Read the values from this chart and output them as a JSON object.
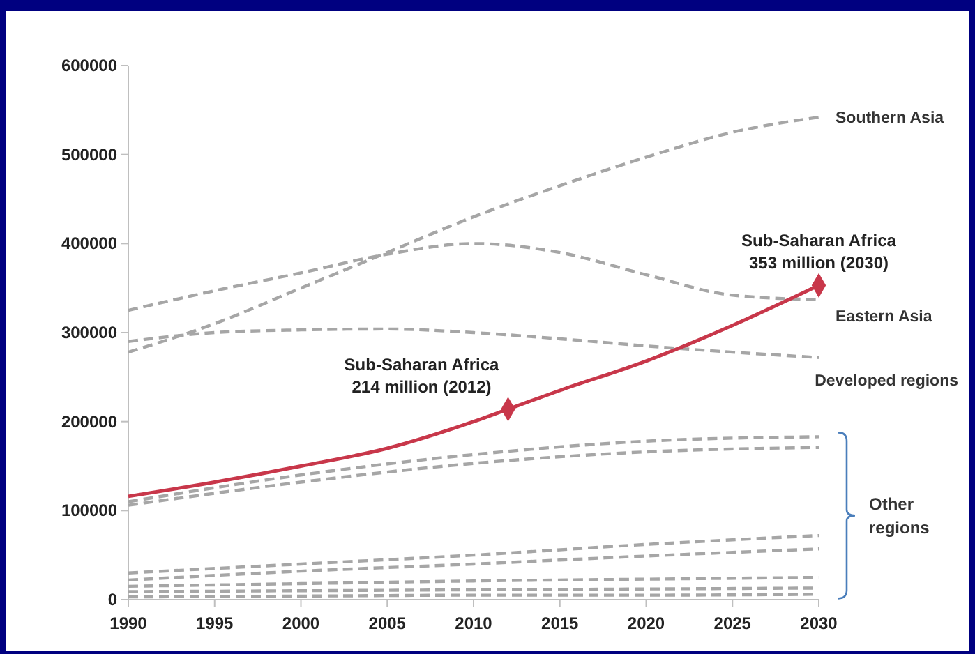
{
  "chart_data": {
    "type": "line",
    "x": [
      1990,
      1995,
      2000,
      2005,
      2010,
      2015,
      2020,
      2025,
      2030
    ],
    "xlim": [
      1990,
      2030
    ],
    "xticks": [
      1990,
      1995,
      2000,
      2005,
      2010,
      2015,
      2020,
      2025,
      2030
    ],
    "ylim": [
      0,
      600000
    ],
    "yticks": [
      0,
      100000,
      200000,
      300000,
      400000,
      500000,
      600000
    ],
    "grid": false,
    "series": [
      {
        "name": "Southern Asia",
        "color": "#a6a6a6",
        "line_style": "dashed",
        "values": [
          278000,
          310000,
          350000,
          390000,
          430000,
          465000,
          497000,
          525000,
          542000
        ]
      },
      {
        "name": "Eastern Asia",
        "color": "#a6a6a6",
        "line_style": "dashed",
        "values": [
          325000,
          347000,
          367000,
          388000,
          400000,
          390000,
          365000,
          342000,
          337000
        ]
      },
      {
        "name": "Developed regions",
        "color": "#a6a6a6",
        "line_style": "dashed",
        "values": [
          290000,
          300000,
          303000,
          304000,
          300000,
          293000,
          285000,
          278000,
          272000
        ]
      },
      {
        "color": "#a6a6a6",
        "line_style": "dashed",
        "x": [
          1990,
          2000,
          2010,
          2020,
          2030
        ],
        "values": [
          110000,
          140000,
          163000,
          178000,
          183000
        ]
      },
      {
        "color": "#a6a6a6",
        "line_style": "dashed",
        "x": [
          1990,
          2000,
          2010,
          2020,
          2030
        ],
        "values": [
          106000,
          132000,
          153000,
          166000,
          171000
        ]
      },
      {
        "color": "#a6a6a6",
        "line_style": "dashed",
        "x": [
          1990,
          2000,
          2010,
          2020,
          2030
        ],
        "values": [
          30000,
          40000,
          50000,
          62000,
          72000
        ]
      },
      {
        "color": "#a6a6a6",
        "line_style": "dashed",
        "x": [
          1990,
          2000,
          2010,
          2020,
          2030
        ],
        "values": [
          22000,
          32000,
          40000,
          49000,
          57000
        ]
      },
      {
        "color": "#a6a6a6",
        "line_style": "dashed",
        "x": [
          1990,
          2000,
          2010,
          2020,
          2030
        ],
        "values": [
          15000,
          18000,
          21000,
          23000,
          25000
        ]
      },
      {
        "color": "#a6a6a6",
        "line_style": "dashed",
        "x": [
          1990,
          2000,
          2010,
          2020,
          2030
        ],
        "values": [
          9000,
          10000,
          11000,
          12000,
          13000
        ]
      },
      {
        "color": "#a6a6a6",
        "line_style": "dashed",
        "x": [
          1990,
          2000,
          2010,
          2020,
          2030
        ],
        "values": [
          3000,
          4000,
          5000,
          5000,
          6000
        ]
      },
      {
        "color": "#c8374a",
        "line_style": "solid",
        "x": [
          1990,
          1995,
          2000,
          2005,
          2010,
          2012,
          2015,
          2020,
          2025,
          2030
        ],
        "values": [
          116000,
          132000,
          150000,
          170000,
          200000,
          214000,
          235000,
          268000,
          308000,
          353000
        ]
      },
      {
        "type": "scatter",
        "marker": "diamond",
        "color": "#c8374a",
        "x": [
          2012,
          2030
        ],
        "values": [
          214000,
          353000
        ]
      }
    ],
    "annotations": [
      {
        "text": "Sub-Saharan Africa\n214 million (2012)",
        "x": 2012,
        "y": 214000
      },
      {
        "text": "Sub-Saharan Africa\n353 million (2030)",
        "x": 2030,
        "y": 353000
      },
      "Other regions"
    ]
  }
}
